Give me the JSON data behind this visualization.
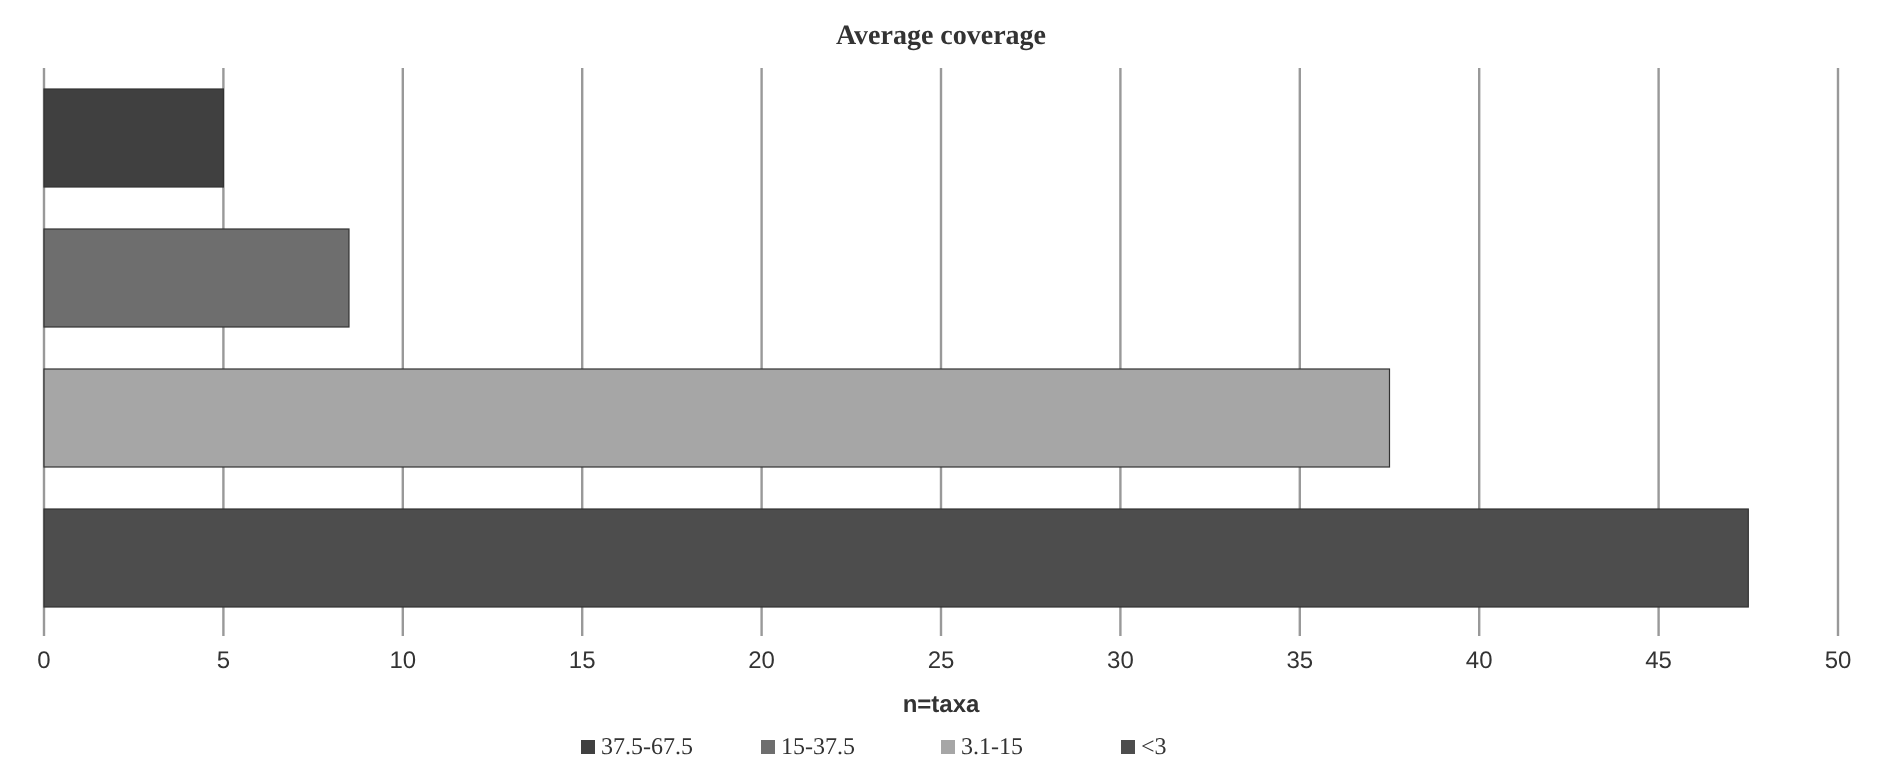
{
  "chart_data": {
    "type": "bar",
    "orientation": "horizontal",
    "title": "Average  coverage",
    "xlabel": "n=taxa",
    "categories": [
      null,
      null,
      null,
      null
    ],
    "series": [
      {
        "name": "37.5-67.5",
        "color": "#404040",
        "values": [
          5,
          null,
          null,
          null
        ]
      },
      {
        "name": "15-37.5",
        "color": "#6e6e6e",
        "values": [
          null,
          8.5,
          null,
          null
        ]
      },
      {
        "name": "3.1-15",
        "color": "#a6a6a6",
        "values": [
          null,
          null,
          37.5,
          null
        ]
      },
      {
        "name": "<3",
        "color": "#4d4d4d",
        "values": [
          null,
          null,
          null,
          47.5
        ]
      }
    ],
    "xlim": [
      0,
      50
    ],
    "xticks": [
      0,
      5,
      10,
      15,
      20,
      25,
      30,
      35,
      40,
      45,
      50
    ],
    "grid": "x",
    "legend": "bottom"
  }
}
